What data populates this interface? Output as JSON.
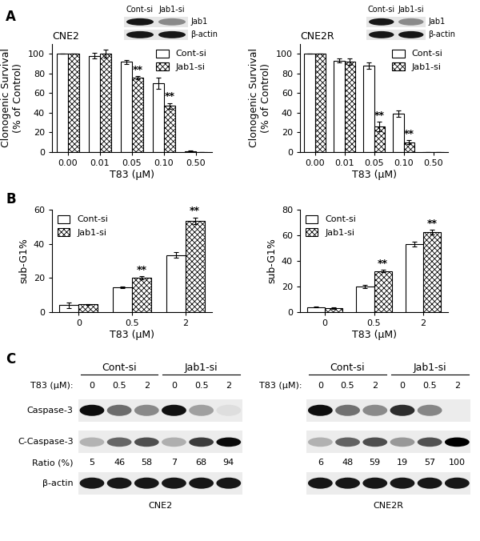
{
  "chart_data": [
    {
      "type": "bar",
      "title": "CNE2",
      "x_label": "T83 (μM)",
      "y_label": "Clonogenic Survival\n(% of Control)",
      "categories": [
        "0.00",
        "0.01",
        "0.05",
        "0.10",
        "0.50"
      ],
      "series": [
        {
          "name": "Cont-si",
          "color": "#ffffff",
          "values": [
            100,
            98,
            92,
            70,
            1
          ],
          "errors": [
            0,
            3,
            2,
            6,
            0.5
          ]
        },
        {
          "name": "Jab1-si",
          "color": "#ffffff",
          "values": [
            100,
            100,
            76,
            47,
            0
          ],
          "errors": [
            0,
            4,
            1.5,
            3,
            0
          ]
        }
      ],
      "ylim": [
        0,
        110
      ],
      "yticks": [
        0,
        20,
        40,
        60,
        80,
        100
      ],
      "legend": "upper right",
      "annotations": [
        {
          "category": "0.05",
          "series": "Jab1-si",
          "text": "**"
        },
        {
          "category": "0.10",
          "series": "Jab1-si",
          "text": "**"
        }
      ]
    },
    {
      "type": "bar",
      "title": "CNE2R",
      "x_label": "T83 (μM)",
      "y_label": "Clonogenic Survival\n(% of Control)",
      "categories": [
        "0.00",
        "0.01",
        "0.05",
        "0.10",
        "0.50"
      ],
      "series": [
        {
          "name": "Cont-si",
          "color": "#ffffff",
          "values": [
            100,
            93,
            88,
            39,
            0
          ],
          "errors": [
            0,
            2,
            3,
            3,
            0
          ]
        },
        {
          "name": "Jab1-si",
          "color": "#ffffff",
          "values": [
            100,
            92,
            26,
            10,
            0
          ],
          "errors": [
            0,
            3,
            5,
            2,
            0
          ]
        }
      ],
      "ylim": [
        0,
        110
      ],
      "yticks": [
        0,
        20,
        40,
        60,
        80,
        100
      ],
      "legend": "upper right",
      "annotations": [
        {
          "category": "0.05",
          "series": "Jab1-si",
          "text": "**"
        },
        {
          "category": "0.10",
          "series": "Jab1-si",
          "text": "**"
        }
      ]
    },
    {
      "type": "bar",
      "x_label": "T83 (μM)",
      "y_label": "sub-G1%",
      "categories": [
        "0",
        "0.5",
        "2"
      ],
      "series": [
        {
          "name": "Cont-si",
          "color": "#ffffff",
          "values": [
            4,
            14.5,
            33.5
          ],
          "errors": [
            1.5,
            0.5,
            1.5
          ]
        },
        {
          "name": "Jab1-si",
          "color": "#ffffff",
          "values": [
            4.5,
            20,
            53.5
          ],
          "errors": [
            0.3,
            1,
            2
          ]
        }
      ],
      "ylim": [
        0,
        60
      ],
      "yticks": [
        0,
        20,
        40,
        60
      ],
      "legend": "upper left",
      "annotations": [
        {
          "category": "0.5",
          "series": "Jab1-si",
          "text": "**"
        },
        {
          "category": "2",
          "series": "Jab1-si",
          "text": "**"
        }
      ]
    },
    {
      "type": "bar",
      "x_label": "T83 (μM)",
      "y_label": "sub-G1%",
      "categories": [
        "0",
        "0.5",
        "2"
      ],
      "series": [
        {
          "name": "Cont-si",
          "color": "#ffffff",
          "values": [
            4,
            20,
            53
          ],
          "errors": [
            0.5,
            1,
            2
          ]
        },
        {
          "name": "Jab1-si",
          "color": "#ffffff",
          "values": [
            3,
            32,
            62.5
          ],
          "errors": [
            0.5,
            1,
            2
          ]
        }
      ],
      "ylim": [
        0,
        80
      ],
      "yticks": [
        0,
        20,
        40,
        60,
        80
      ],
      "legend": "upper left",
      "annotations": [
        {
          "category": "0.5",
          "series": "Jab1-si",
          "text": "**"
        },
        {
          "category": "2",
          "series": "Jab1-si",
          "text": "**"
        }
      ]
    }
  ],
  "inset_blots": [
    {
      "lanes": [
        "Cont-si",
        "Jab1-si"
      ],
      "rows": [
        "Jab1",
        "β-actin"
      ]
    },
    {
      "lanes": [
        "Cont-si",
        "Jab1-si"
      ],
      "rows": [
        "Jab1",
        "β-actin"
      ]
    }
  ],
  "western_blot": {
    "t83_label": "T83 (μM):",
    "row_labels": [
      "Caspase-3",
      "C-Caspase-3",
      "Ratio (%)",
      "β-actin"
    ],
    "blots": [
      {
        "cell_line": "CNE2",
        "groups": [
          "Cont-si",
          "Jab1-si"
        ],
        "doses": [
          0,
          0.5,
          2
        ],
        "ratios": [
          5,
          46,
          58,
          7,
          68,
          94
        ]
      },
      {
        "cell_line": "CNE2R",
        "groups": [
          "Cont-si",
          "Jab1-si"
        ],
        "doses": [
          0,
          0.5,
          2
        ],
        "ratios": [
          6,
          48,
          59,
          19,
          57,
          100
        ]
      }
    ]
  },
  "panel_labels": [
    "A",
    "B",
    "C"
  ]
}
